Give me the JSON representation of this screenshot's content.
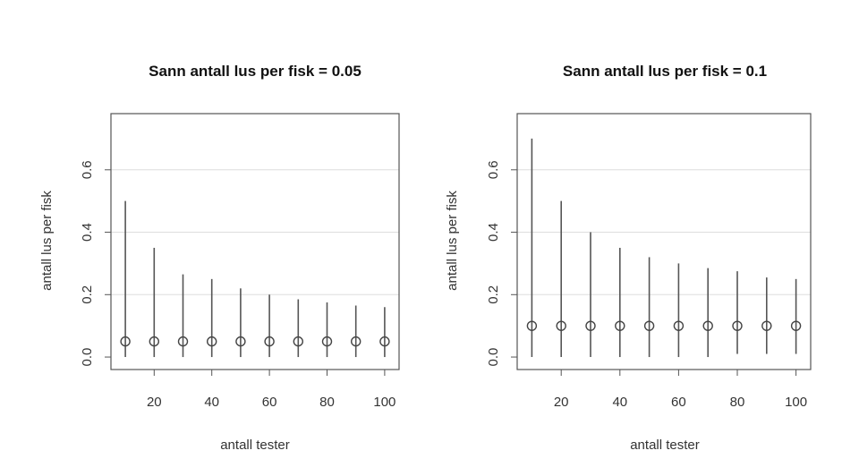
{
  "chart_data": [
    {
      "type": "scatter",
      "title": "Sann antall lus per fisk = 0.05",
      "xlabel": "antall tester",
      "ylabel": "antall lus per fisk",
      "xlim": [
        5,
        105
      ],
      "ylim": [
        -0.04,
        0.78
      ],
      "x_ticks": [
        20,
        40,
        60,
        80,
        100
      ],
      "y_ticks": [
        0.0,
        0.2,
        0.4,
        0.6
      ],
      "grid_y": [
        0.2,
        0.4,
        0.6
      ],
      "colors": {
        "frame": "#555555",
        "interval": "#555555",
        "point": "#444444",
        "grid": "#dddddd"
      },
      "x": [
        10,
        20,
        30,
        40,
        50,
        60,
        70,
        80,
        90,
        100
      ],
      "estimate": [
        0.05,
        0.05,
        0.05,
        0.05,
        0.05,
        0.05,
        0.05,
        0.05,
        0.05,
        0.05
      ],
      "lower": [
        0,
        0,
        0,
        0,
        0,
        0,
        0,
        0,
        0,
        0
      ],
      "upper": [
        0.5,
        0.35,
        0.265,
        0.25,
        0.22,
        0.2,
        0.185,
        0.175,
        0.165,
        0.16
      ]
    },
    {
      "type": "scatter",
      "title": "Sann antall lus per fisk = 0.1",
      "xlabel": "antall tester",
      "ylabel": "antall lus per fisk",
      "xlim": [
        5,
        105
      ],
      "ylim": [
        -0.04,
        0.78
      ],
      "x_ticks": [
        20,
        40,
        60,
        80,
        100
      ],
      "y_ticks": [
        0.0,
        0.2,
        0.4,
        0.6
      ],
      "grid_y": [
        0.2,
        0.4,
        0.6
      ],
      "colors": {
        "frame": "#555555",
        "interval": "#555555",
        "point": "#444444",
        "grid": "#dddddd"
      },
      "x": [
        10,
        20,
        30,
        40,
        50,
        60,
        70,
        80,
        90,
        100
      ],
      "estimate": [
        0.1,
        0.1,
        0.1,
        0.1,
        0.1,
        0.1,
        0.1,
        0.1,
        0.1,
        0.1
      ],
      "lower": [
        0,
        0,
        0,
        0,
        0,
        0,
        0,
        0.01,
        0.01,
        0.01
      ],
      "upper": [
        0.7,
        0.5,
        0.4,
        0.35,
        0.32,
        0.3,
        0.285,
        0.275,
        0.255,
        0.25
      ]
    }
  ]
}
